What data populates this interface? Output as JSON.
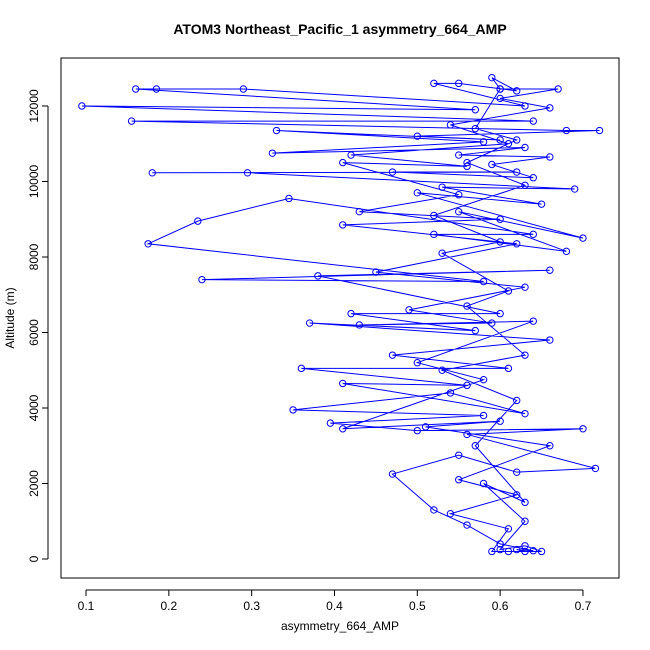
{
  "chart_data": {
    "type": "line",
    "title": "ATOM3 Northeast_Pacific_1 asymmetry_664_AMP",
    "x_label": "asymmetry_664_AMP",
    "y_label": "Altitude (m)",
    "color": "#0000ff",
    "marker": "open-circle",
    "grid": false,
    "xlim": [
      0.0698,
      0.7435
    ],
    "ylim": [
      -503,
      13271
    ],
    "xticks": [
      0.1,
      0.2,
      0.3,
      0.4,
      0.5,
      0.6,
      0.7
    ],
    "yticks": [
      0,
      2000,
      4000,
      6000,
      8000,
      10000,
      12000
    ],
    "x": [
      0.63,
      0.62,
      0.64,
      0.6,
      0.56,
      0.52,
      0.47,
      0.55,
      0.62,
      0.715,
      0.56,
      0.7,
      0.5,
      0.395,
      0.58,
      0.35,
      0.54,
      0.63,
      0.41,
      0.56,
      0.36,
      0.61,
      0.47,
      0.66,
      0.37,
      0.57,
      0.42,
      0.6,
      0.38,
      0.66,
      0.24,
      0.58,
      0.175,
      0.235,
      0.345,
      0.64,
      0.52,
      0.68,
      0.55,
      0.7,
      0.5,
      0.65,
      0.53,
      0.69,
      0.295,
      0.18,
      0.62,
      0.47,
      0.64,
      0.59,
      0.66,
      0.55,
      0.63,
      0.325,
      0.58,
      0.33,
      0.6,
      0.5,
      0.72,
      0.68,
      0.155,
      0.64,
      0.095,
      0.57,
      0.16,
      0.185,
      0.29,
      0.63,
      0.52,
      0.55,
      0.62,
      0.59,
      0.6,
      0.67,
      0.6,
      0.66,
      0.54,
      0.61,
      0.42,
      0.56,
      0.41,
      0.55,
      0.43,
      0.6,
      0.41,
      0.62,
      0.45,
      0.63,
      0.49,
      0.59,
      0.43,
      0.64,
      0.5,
      0.58,
      0.41,
      0.6,
      0.51,
      0.66,
      0.55,
      0.62,
      0.54,
      0.61,
      0.59,
      0.61,
      0.65,
      0.63,
      0.6,
      0.63,
      0.58,
      0.63,
      0.57,
      0.62,
      0.53,
      0.63,
      0.56,
      0.61,
      0.53,
      0.6,
      0.52,
      0.63,
      0.56,
      0.62,
      0.57,
      0.6
    ],
    "values": [
      200,
      250,
      220,
      400,
      900,
      1300,
      2250,
      2750,
      2300,
      2400,
      3300,
      3450,
      3400,
      3600,
      3800,
      3950,
      4400,
      3850,
      4650,
      4600,
      5050,
      5050,
      5400,
      5800,
      6250,
      6050,
      6500,
      6500,
      7500,
      7650,
      7400,
      7350,
      8350,
      8950,
      9550,
      8600,
      8600,
      8150,
      9200,
      8500,
      9700,
      9400,
      9850,
      9800,
      10230,
      10230,
      10250,
      10250,
      10100,
      10450,
      10650,
      10700,
      10900,
      10750,
      11050,
      11350,
      11100,
      11200,
      11350,
      11350,
      11600,
      11600,
      12000,
      11900,
      12450,
      12450,
      12450,
      12000,
      12600,
      12600,
      12400,
      12750,
      12450,
      12450,
      12200,
      11950,
      11500,
      11000,
      10700,
      10400,
      10500,
      9650,
      9200,
      9000,
      8850,
      8350,
      7600,
      7200,
      6600,
      6250,
      6200,
      6300,
      5200,
      4750,
      3450,
      3650,
      3500,
      3000,
      2100,
      1700,
      1200,
      800,
      200,
      200,
      200,
      350,
      250,
      1000,
      2000,
      1500,
      3000,
      4200,
      5000,
      5400,
      6700,
      7100,
      8100,
      8400,
      9100,
      9900,
      10500,
      11100,
      11400,
      12450
    ]
  }
}
